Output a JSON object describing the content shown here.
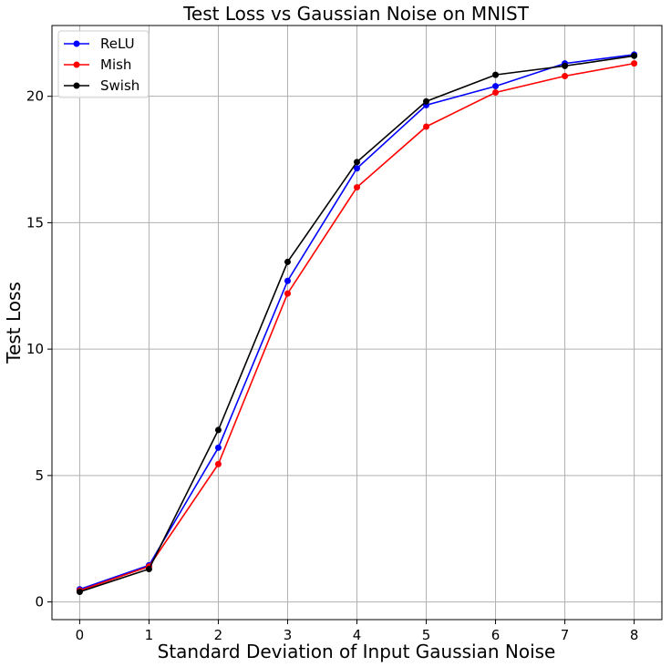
{
  "chart_data": {
    "type": "line",
    "title": "Test Loss vs Gaussian Noise on MNIST",
    "xlabel": "Standard Deviation of Input Gaussian Noise",
    "ylabel": "Test Loss",
    "x": [
      0,
      1,
      2,
      3,
      4,
      5,
      6,
      7,
      8
    ],
    "xlim": [
      -0.4,
      8.4
    ],
    "ylim": [
      -0.7,
      22.8
    ],
    "xticks": [
      0,
      1,
      2,
      3,
      4,
      5,
      6,
      7,
      8
    ],
    "yticks": [
      0,
      5,
      10,
      15,
      20
    ],
    "grid": true,
    "legend_position": "top-left",
    "series": [
      {
        "name": "ReLU",
        "color": "#0000ff",
        "values": [
          0.5,
          1.45,
          6.1,
          12.7,
          17.15,
          19.65,
          20.4,
          21.3,
          21.65
        ]
      },
      {
        "name": "Mish",
        "color": "#ff0000",
        "values": [
          0.45,
          1.4,
          5.45,
          12.2,
          16.4,
          18.8,
          20.15,
          20.8,
          21.3
        ]
      },
      {
        "name": "Swish",
        "color": "#000000",
        "values": [
          0.4,
          1.3,
          6.8,
          13.45,
          17.4,
          19.8,
          20.85,
          21.2,
          21.6
        ]
      }
    ]
  }
}
